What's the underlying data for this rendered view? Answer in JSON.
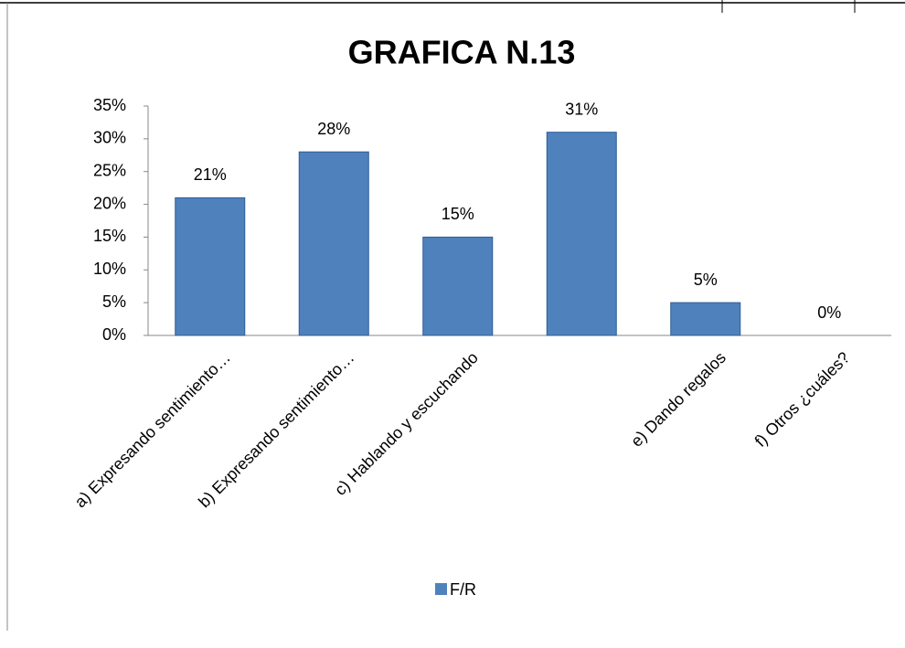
{
  "chart_data": {
    "type": "bar",
    "title": "GRAFICA  N.13",
    "categories": [
      "a) Expresando sentimiento…",
      "b) Expresando sentimiento…",
      "c) Hablando y escuchando",
      null,
      "e) Dando regalos",
      "f) Otros ¿cuáles?"
    ],
    "series": [
      {
        "name": "F/R",
        "color": "#4f81bd",
        "values": [
          21,
          28,
          15,
          31,
          5,
          0
        ],
        "value_labels": [
          "21%",
          "28%",
          "15%",
          "31%",
          "5%",
          "0%"
        ]
      }
    ],
    "ylim": [
      0,
      35
    ],
    "yticks": [
      {
        "value": 0,
        "label": "0%"
      },
      {
        "value": 5,
        "label": "5%"
      },
      {
        "value": 10,
        "label": "10%"
      },
      {
        "value": 15,
        "label": "15%"
      },
      {
        "value": 20,
        "label": "20%"
      },
      {
        "value": 25,
        "label": "25%"
      },
      {
        "value": 30,
        "label": "30%"
      },
      {
        "value": 35,
        "label": "35%"
      }
    ],
    "legend": "bottom"
  }
}
